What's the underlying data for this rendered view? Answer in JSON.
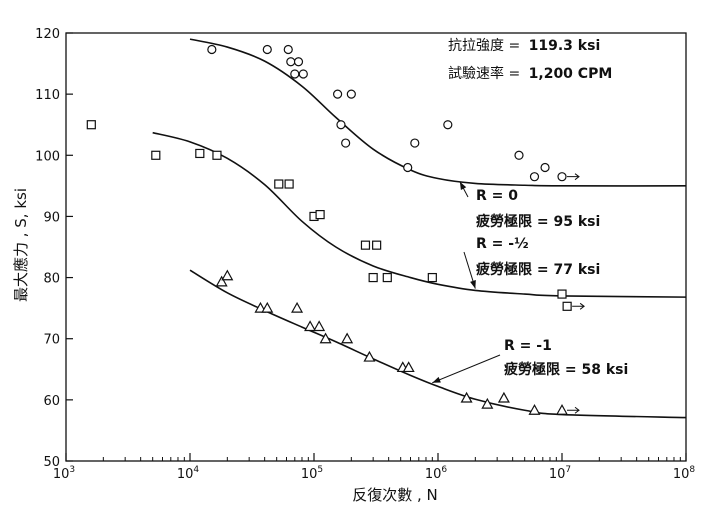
{
  "chart_data": {
    "type": "scatter",
    "xlabel": "反復次數 , N",
    "ylabel": "最大應力 , S, ksi",
    "xscale": "log",
    "xlim": [
      1000,
      100000000
    ],
    "ylim": [
      50,
      120
    ],
    "x_ticks": [
      {
        "value": 1000,
        "base": "10",
        "exp": "3"
      },
      {
        "value": 10000,
        "base": "10",
        "exp": "4"
      },
      {
        "value": 100000,
        "base": "10",
        "exp": "5"
      },
      {
        "value": 1000000,
        "base": "10",
        "exp": "6"
      },
      {
        "value": 10000000,
        "base": "10",
        "exp": "7"
      },
      {
        "value": 100000000,
        "base": "10",
        "exp": "8"
      }
    ],
    "y_ticks": [
      50,
      60,
      70,
      80,
      90,
      100,
      110,
      120
    ],
    "grid": false,
    "annotations": {
      "tensile_label": "抗拉強度 =",
      "tensile_value": "119.3 ksi",
      "rate_label": "試驗速率 =",
      "rate_value": "1,200 CPM"
    },
    "series": [
      {
        "marker": "circle",
        "ratio_label": "R = 0",
        "limit_label": "疲勞極限 = 95 ksi",
        "points": [
          [
            15000,
            117.3
          ],
          [
            42000,
            117.3
          ],
          [
            62000,
            117.3
          ],
          [
            65000,
            115.3
          ],
          [
            75000,
            115.3
          ],
          [
            70000,
            113.3
          ],
          [
            82000,
            113.3
          ],
          [
            155000,
            110
          ],
          [
            200000,
            110
          ],
          [
            165000,
            105
          ],
          [
            180000,
            102
          ],
          [
            570000,
            98
          ],
          [
            650000,
            102
          ],
          [
            1200000,
            105
          ],
          [
            4500000,
            100
          ],
          [
            6000000,
            96.5
          ],
          [
            7300000,
            98
          ],
          [
            10000000,
            96.5
          ]
        ],
        "curve": [
          [
            10000,
            119
          ],
          [
            20000,
            117.7
          ],
          [
            40000,
            115.4
          ],
          [
            80000,
            111.3
          ],
          [
            150000,
            106.2
          ],
          [
            300000,
            101
          ],
          [
            600000,
            97.6
          ],
          [
            1000000,
            96.2
          ],
          [
            2000000,
            95.4
          ],
          [
            5000000,
            95.1
          ],
          [
            10000000,
            95
          ],
          [
            100000000,
            95
          ]
        ]
      },
      {
        "marker": "square",
        "ratio_label": "R = -½",
        "limit_label": "疲勞極限 = 77 ksi",
        "points": [
          [
            1600,
            105
          ],
          [
            5300,
            100
          ],
          [
            12000,
            100.3
          ],
          [
            16500,
            100
          ],
          [
            52000,
            95.3
          ],
          [
            63000,
            95.3
          ],
          [
            100000,
            90
          ],
          [
            112000,
            90.3
          ],
          [
            260000,
            85.3
          ],
          [
            320000,
            85.3
          ],
          [
            300000,
            80
          ],
          [
            390000,
            80
          ],
          [
            900000,
            80
          ],
          [
            10000000,
            77.3
          ],
          [
            11000000,
            75.3
          ]
        ],
        "curve": [
          [
            5000,
            103.7
          ],
          [
            10000,
            102.2
          ],
          [
            20000,
            99.5
          ],
          [
            40000,
            95.2
          ],
          [
            80000,
            89.2
          ],
          [
            150000,
            85
          ],
          [
            300000,
            81.9
          ],
          [
            600000,
            80
          ],
          [
            1000000,
            78.9
          ],
          [
            2000000,
            77.9
          ],
          [
            5000000,
            77.3
          ],
          [
            10000000,
            77
          ],
          [
            100000000,
            76.8
          ]
        ]
      },
      {
        "marker": "triangle",
        "ratio_label": "R = -1",
        "limit_label": "疲勞極限 = 58 ksi",
        "points": [
          [
            18000,
            79.3
          ],
          [
            20000,
            80.3
          ],
          [
            37000,
            75
          ],
          [
            42000,
            75
          ],
          [
            73000,
            75
          ],
          [
            93000,
            72
          ],
          [
            110000,
            72
          ],
          [
            124000,
            70
          ],
          [
            185000,
            70
          ],
          [
            280000,
            67
          ],
          [
            520000,
            65.3
          ],
          [
            580000,
            65.3
          ],
          [
            1700000,
            60.3
          ],
          [
            2500000,
            59.3
          ],
          [
            3400000,
            60.3
          ],
          [
            6000000,
            58.3
          ],
          [
            10000000,
            58.3
          ]
        ],
        "curve": [
          [
            10000,
            81.2
          ],
          [
            20000,
            77.5
          ],
          [
            40000,
            74.6
          ],
          [
            80000,
            71.9
          ],
          [
            150000,
            69.5
          ],
          [
            300000,
            66.7
          ],
          [
            600000,
            64
          ],
          [
            1000000,
            62.2
          ],
          [
            2000000,
            60.1
          ],
          [
            5000000,
            58.3
          ],
          [
            10000000,
            57.6
          ],
          [
            100000000,
            57.1
          ]
        ]
      }
    ]
  }
}
